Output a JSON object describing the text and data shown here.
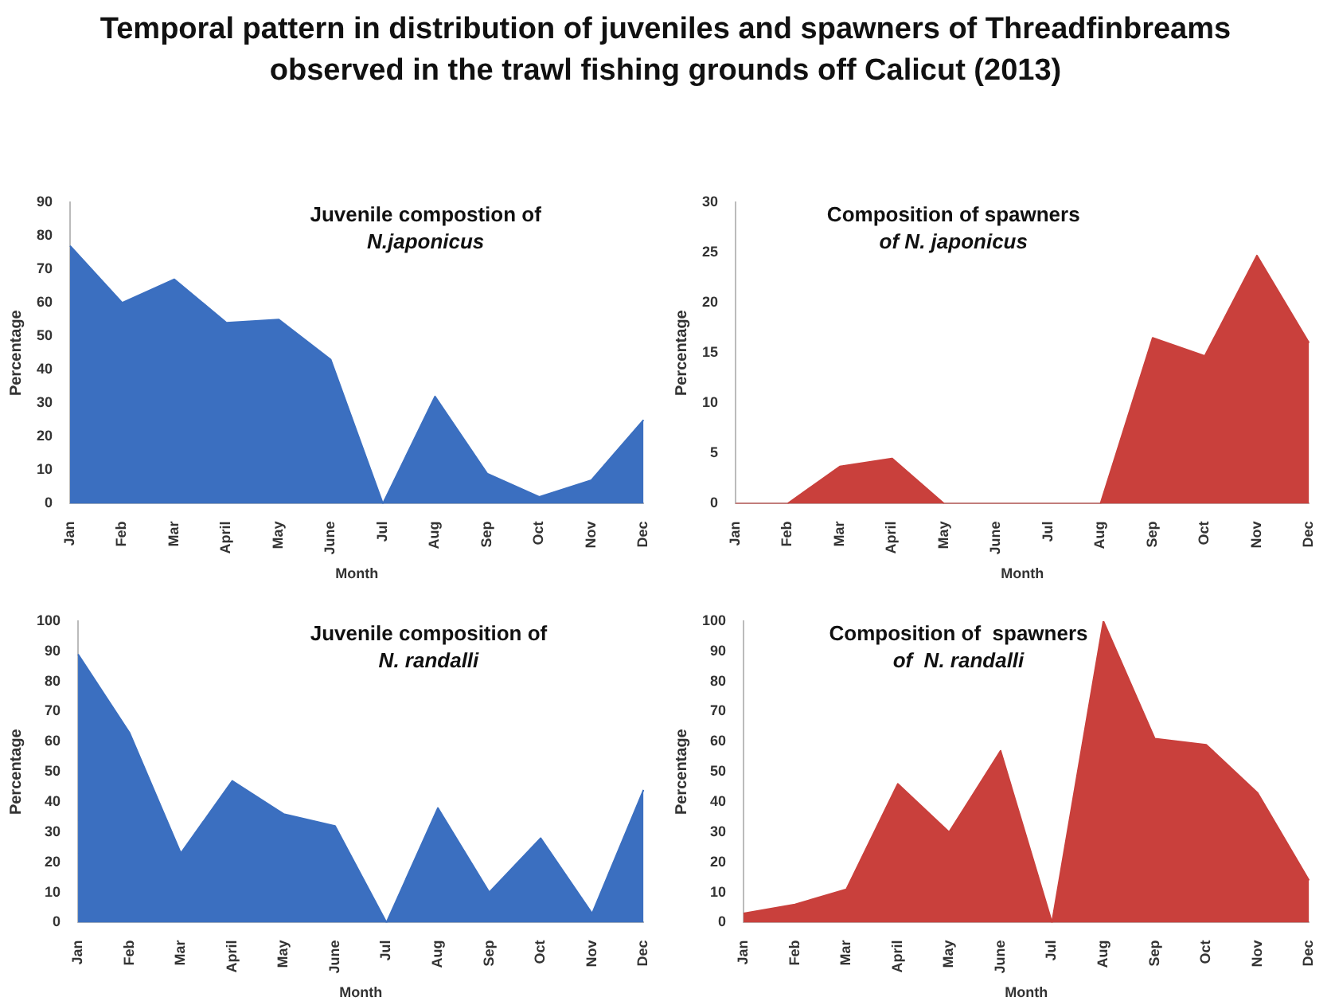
{
  "chart_data": [
    {
      "type": "other",
      "title": "Temporal pattern in distribution of juveniles and spawners of  Threadfinbreams observed in the trawl fishing grounds off Calicut (2013)"
    },
    {
      "type": "area",
      "title": "Juvenile compostion of\nN.japonicus",
      "xlabel": "Month",
      "ylabel": "Percentage",
      "categories": [
        "Jan",
        "Feb",
        "Mar",
        "April",
        "May",
        "June",
        "Jul",
        "Aug",
        "Sep",
        "Oct",
        "Nov",
        "Dec"
      ],
      "series": [
        {
          "color": "#3b6fc0",
          "values": [
            77,
            60,
            67,
            54,
            55,
            43,
            0,
            32,
            9,
            2,
            7,
            25
          ]
        }
      ],
      "ylim": [
        0,
        90
      ],
      "yticks": [
        0,
        10,
        20,
        30,
        40,
        50,
        60,
        70,
        80,
        90
      ],
      "grid": false,
      "legend": false
    },
    {
      "type": "area",
      "title": "Composition of spawners\nof N. japonicus",
      "xlabel": "Month",
      "ylabel": "Percentage",
      "categories": [
        "Jan",
        "Feb",
        "Mar",
        "April",
        "May",
        "June",
        "Jul",
        "Aug",
        "Sep",
        "Oct",
        "Nov",
        "Dec"
      ],
      "series": [
        {
          "color": "#c9403c",
          "values": [
            0,
            0,
            3.7,
            4.5,
            0,
            0,
            0,
            0,
            16.5,
            14.7,
            24.7,
            16
          ]
        }
      ],
      "ylim": [
        0,
        30
      ],
      "yticks": [
        0,
        5,
        10,
        15,
        20,
        25,
        30
      ],
      "grid": false,
      "legend": false
    },
    {
      "type": "area",
      "title": "Juvenile composition of\nN. randalli",
      "xlabel": "Month",
      "ylabel": "Percentage",
      "categories": [
        "Jan",
        "Feb",
        "Mar",
        "April",
        "May",
        "June",
        "Jul",
        "Aug",
        "Sep",
        "Oct",
        "Nov",
        "Dec"
      ],
      "series": [
        {
          "color": "#3b6fc0",
          "values": [
            89,
            63,
            23,
            47,
            36,
            32,
            0,
            38,
            10,
            28,
            3,
            44
          ]
        }
      ],
      "ylim": [
        0,
        100
      ],
      "yticks": [
        0,
        10,
        20,
        30,
        40,
        50,
        60,
        70,
        80,
        90,
        100
      ],
      "grid": false,
      "legend": false
    },
    {
      "type": "area",
      "title": "Composition of  spawners\nof  N. randalli",
      "xlabel": "Month",
      "ylabel": "Percentage",
      "categories": [
        "Jan",
        "Feb",
        "Mar",
        "April",
        "May",
        "June",
        "Jul",
        "Aug",
        "Sep",
        "Oct",
        "Nov",
        "Dec"
      ],
      "series": [
        {
          "color": "#c9403c",
          "values": [
            3,
            6,
            11,
            46,
            30,
            57,
            0,
            100,
            61,
            59,
            43,
            14
          ]
        }
      ],
      "ylim": [
        0,
        100
      ],
      "yticks": [
        0,
        10,
        20,
        30,
        40,
        50,
        60,
        70,
        80,
        90,
        100
      ],
      "grid": false,
      "legend": false
    }
  ]
}
